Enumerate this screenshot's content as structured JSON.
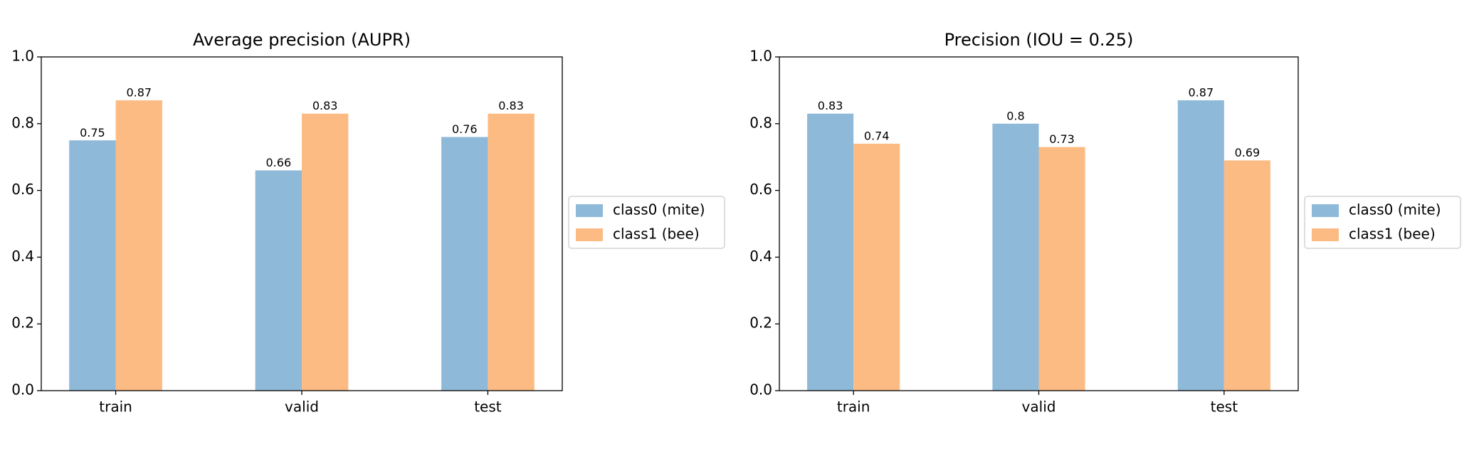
{
  "chart_data": [
    {
      "type": "bar",
      "title": "Average precision (AUPR)",
      "categories": [
        "train",
        "valid",
        "test"
      ],
      "series": [
        {
          "name": "class0 (mite)",
          "color": "#8fb9d9",
          "values": [
            0.75,
            0.66,
            0.76
          ]
        },
        {
          "name": "class1 (bee)",
          "color": "#fdbb84",
          "values": [
            0.87,
            0.83,
            0.83
          ]
        }
      ],
      "ylim": [
        0,
        1
      ],
      "yticks": [
        {
          "value": 0,
          "label": "0.0"
        },
        0.2,
        0.4,
        0.6,
        0.8,
        {
          "value": 1,
          "label": "1.0"
        }
      ],
      "legend": "outside-right"
    },
    {
      "type": "bar",
      "title": "Precision (IOU = 0.25)",
      "categories": [
        "train",
        "valid",
        "test"
      ],
      "series": [
        {
          "name": "class0 (mite)",
          "color": "#8fb9d9",
          "values": [
            0.83,
            0.8,
            0.87
          ]
        },
        {
          "name": "class1 (bee)",
          "color": "#fdbb84",
          "values": [
            0.74,
            0.73,
            0.69
          ]
        }
      ],
      "ylim": [
        0,
        1
      ],
      "yticks": [
        {
          "value": 0,
          "label": "0.0"
        },
        0.2,
        0.4,
        0.6,
        0.8,
        {
          "value": 1,
          "label": "1.0"
        }
      ],
      "legend": "outside-right"
    }
  ]
}
